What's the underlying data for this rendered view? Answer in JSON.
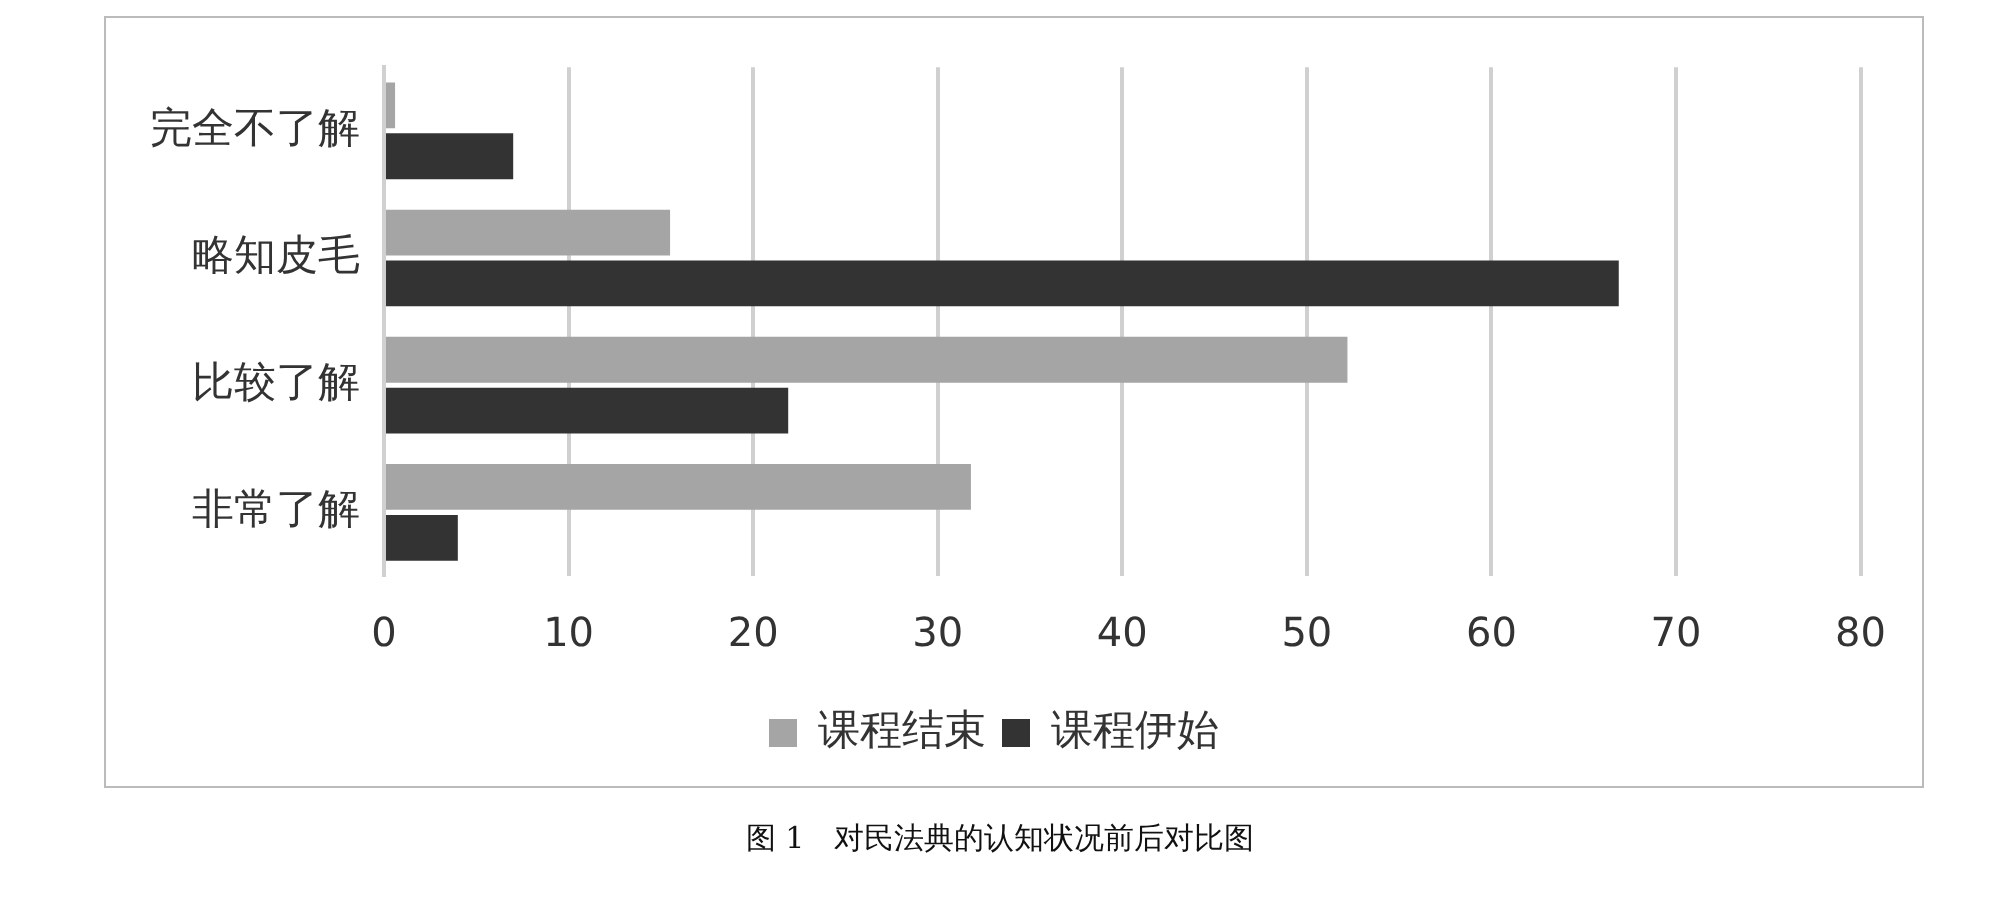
{
  "chart_data": {
    "type": "bar",
    "orientation": "horizontal",
    "categories": [
      "完全不了解",
      "略知皮毛",
      "比较了解",
      "非常了解"
    ],
    "series": [
      {
        "name": "课程结束",
        "color": "#a5a5a5",
        "values": [
          0.6,
          15.5,
          52.2,
          31.8
        ]
      },
      {
        "name": "课程伊始",
        "color": "#333333",
        "values": [
          7.0,
          66.9,
          21.9,
          4.0
        ]
      }
    ],
    "xlim": [
      0,
      80
    ],
    "xticks": [
      0,
      10,
      20,
      30,
      40,
      50,
      60,
      70,
      80
    ],
    "grid": "x",
    "legend": "bottom",
    "annotations": [
      "图 1　对民法典的认知状况前后对比图"
    ]
  }
}
